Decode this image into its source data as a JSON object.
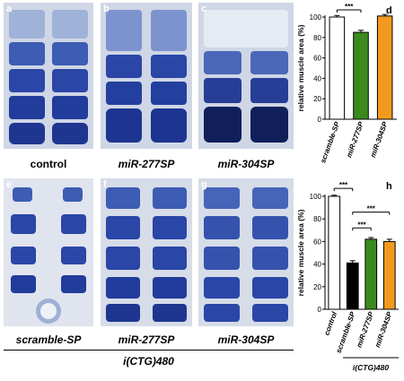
{
  "panels": [
    {
      "label": "a",
      "caption": "control"
    },
    {
      "label": "b",
      "caption": "miR-277SP"
    },
    {
      "label": "c",
      "caption": "miR-304SP"
    },
    {
      "label": "e",
      "caption": "scramble-SP"
    },
    {
      "label": "f",
      "caption": "miR-277SP"
    },
    {
      "label": "g",
      "caption": "miR-304SP"
    }
  ],
  "group_label": "i(CTG)480",
  "chart_data": [
    {
      "type": "bar",
      "panel_label": "d",
      "categories": [
        "scramble-SP",
        "miR-277SP",
        "miR-304SP"
      ],
      "values": [
        100,
        85,
        101
      ],
      "errors": [
        1.5,
        2,
        1.5
      ],
      "colors": [
        "#ffffff",
        "#3a8a1e",
        "#f39a1e"
      ],
      "ylabel": "relative muscle area  (%)",
      "ylim": [
        0,
        100
      ],
      "yticks": [
        "0",
        "20",
        "40",
        "60",
        "80",
        "100"
      ],
      "significance": [
        {
          "from": 0,
          "to": 1,
          "label": "***"
        }
      ]
    },
    {
      "type": "bar",
      "panel_label": "h",
      "categories": [
        "control",
        "scramble-SP",
        "miR-277SP",
        "miR-304SP"
      ],
      "values": [
        100,
        41,
        62,
        60
      ],
      "errors": [
        1,
        2,
        1.5,
        2
      ],
      "colors": [
        "#ffffff",
        "#000000",
        "#3a8a1e",
        "#f39a1e"
      ],
      "ylabel": "relative muscle area  (%)",
      "ylim": [
        0,
        100
      ],
      "yticks": [
        "0",
        "20",
        "40",
        "60",
        "80",
        "100"
      ],
      "group_label": "i(CTG)480",
      "significance": [
        {
          "from": 0,
          "to": 1,
          "label": "***"
        },
        {
          "from": 1,
          "to": 2,
          "label": "***"
        },
        {
          "from": 1,
          "to": 3,
          "label": "***"
        }
      ]
    }
  ]
}
